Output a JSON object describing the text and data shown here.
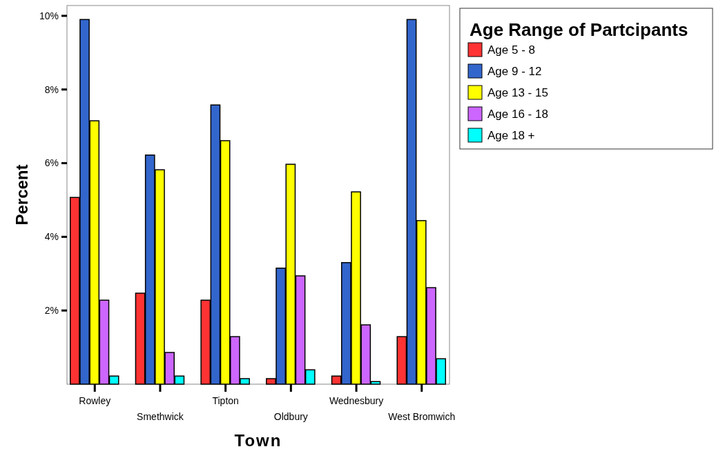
{
  "chart_data": {
    "type": "bar",
    "xlabel": "Town",
    "ylabel": "Percent",
    "legend_title": "Age Range of Partcipants",
    "categories": [
      "Rowley",
      "Smethwick",
      "Tipton",
      "Oldbury",
      "Wednesbury",
      "West Bromwich"
    ],
    "series": [
      {
        "name": "Age 5 - 8",
        "color": "#ff3333",
        "values": [
          5.07,
          2.47,
          2.28,
          0.15,
          0.22,
          1.29
        ]
      },
      {
        "name": "Age 9 - 12",
        "color": "#3366cc",
        "values": [
          9.9,
          6.22,
          7.58,
          3.15,
          3.3,
          9.9
        ]
      },
      {
        "name": "Age 13 - 15",
        "color": "#ffff00",
        "values": [
          7.15,
          5.82,
          6.61,
          5.97,
          5.22,
          4.44
        ]
      },
      {
        "name": "Age 16 - 18",
        "color": "#cc66ff",
        "values": [
          2.28,
          0.86,
          1.29,
          2.94,
          1.61,
          2.62
        ]
      },
      {
        "name": "Age 18 +",
        "color": "#00ffff",
        "values": [
          0.22,
          0.22,
          0.15,
          0.39,
          0.07,
          0.69
        ]
      }
    ],
    "ylim": [
      0,
      10.28
    ],
    "yticks": [
      {
        "value": 2,
        "label": "2%"
      },
      {
        "value": 4,
        "label": "4%"
      },
      {
        "value": 6,
        "label": "6%"
      },
      {
        "value": 8,
        "label": "8%"
      },
      {
        "value": 10,
        "label": "10%"
      }
    ],
    "grid": false,
    "legend": "top right"
  }
}
